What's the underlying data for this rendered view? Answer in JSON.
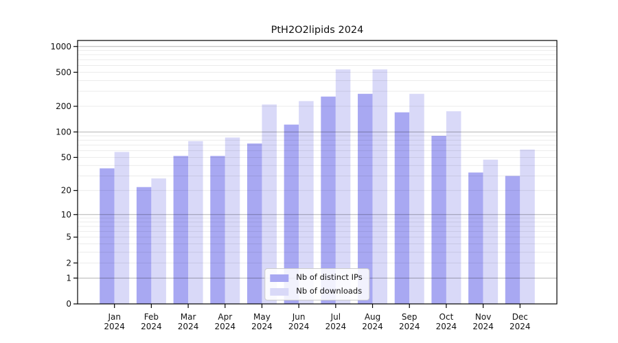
{
  "chart_data": {
    "type": "bar",
    "title": "PtH2O2lipids 2024",
    "categories": [
      "Jan",
      "Feb",
      "Mar",
      "Apr",
      "May",
      "Jun",
      "Jul",
      "Aug",
      "Sep",
      "Oct",
      "Nov",
      "Dec"
    ],
    "category_year": "2024",
    "series": [
      {
        "name": "Nb of distinct IPs",
        "color": "#a8a8f2",
        "values": [
          37,
          22,
          52,
          52,
          73,
          122,
          260,
          280,
          170,
          90,
          33,
          30
        ]
      },
      {
        "name": "Nb of downloads",
        "color": "#d9d9f8",
        "values": [
          58,
          28,
          78,
          86,
          210,
          230,
          540,
          540,
          280,
          175,
          47,
          62
        ]
      }
    ],
    "yscale": "log1p",
    "ylim": [
      0,
      1175
    ],
    "yticks": [
      1000,
      500,
      200,
      100,
      50,
      20,
      10,
      5,
      2,
      1,
      0
    ],
    "major_gridlines": [
      1,
      10,
      100,
      1000
    ],
    "minor_gridline_decades": [
      1,
      10,
      100
    ],
    "grid": true,
    "legend_position": "lower center inside plot",
    "colors": {
      "axis": "#000000",
      "text": "#111111",
      "major_grid": "rgba(0,0,0,0.30)",
      "minor_grid": "rgba(0,0,0,0.09)",
      "background": "#ffffff"
    }
  }
}
